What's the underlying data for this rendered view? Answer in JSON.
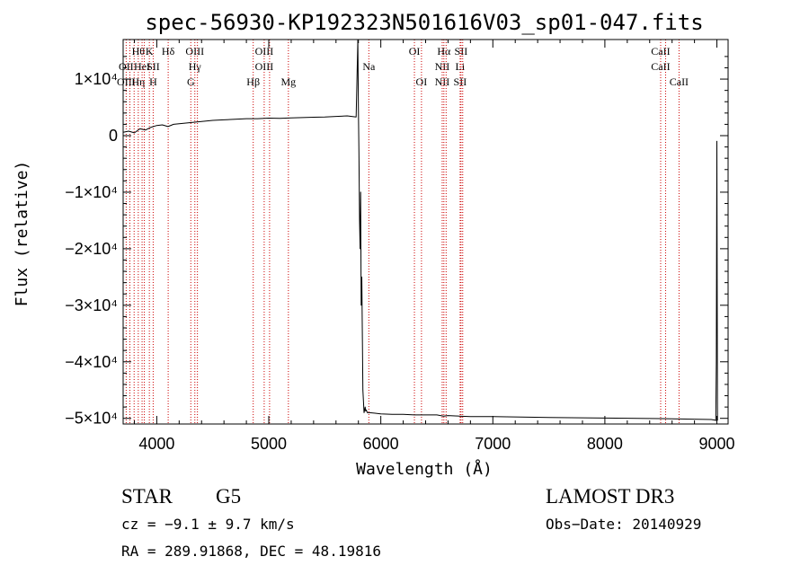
{
  "chart_data": {
    "type": "line",
    "title": "spec-56930-KP192323N501616V03_sp01-047.fits",
    "xlabel": "Wavelength (Å)",
    "ylabel": "Flux (relative)",
    "xlim": [
      3700,
      9100
    ],
    "ylim": [
      -51000,
      17000
    ],
    "x_ticks": [
      {
        "value": 4000,
        "label": "4000"
      },
      {
        "value": 5000,
        "label": "5000"
      },
      {
        "value": 6000,
        "label": "6000"
      },
      {
        "value": 7000,
        "label": "7000"
      },
      {
        "value": 8000,
        "label": "8000"
      },
      {
        "value": 9000,
        "label": "9000"
      }
    ],
    "y_ticks": [
      {
        "value": 10000,
        "label": "1×10⁴"
      },
      {
        "value": 0,
        "label": "0"
      },
      {
        "value": -10000,
        "label": "−1×10⁴"
      },
      {
        "value": -20000,
        "label": "−2×10⁴"
      },
      {
        "value": -30000,
        "label": "−3×10⁴"
      },
      {
        "value": -40000,
        "label": "−4×10⁴"
      },
      {
        "value": -50000,
        "label": "−5×10⁴"
      }
    ],
    "series": [
      {
        "name": "spectrum",
        "x": [
          3700,
          3750,
          3800,
          3850,
          3900,
          3950,
          4000,
          4050,
          4100,
          4150,
          4200,
          4300,
          4400,
          4500,
          4600,
          4700,
          4800,
          4900,
          5000,
          5100,
          5200,
          5300,
          5400,
          5500,
          5600,
          5700,
          5780,
          5795,
          5800,
          5805,
          5810,
          5815,
          5820,
          5825,
          5830,
          5840,
          5850,
          5855,
          5860,
          5865,
          5870,
          5880,
          5900,
          5950,
          6000,
          6100,
          6200,
          6300,
          6400,
          6500,
          6560,
          6600,
          6700,
          6800,
          6900,
          7000,
          7500,
          8000,
          8500,
          8950,
          8980,
          8990,
          8995,
          9000,
          9005
        ],
        "y": [
          600,
          800,
          500,
          1200,
          1000,
          1500,
          1800,
          1900,
          1600,
          2000,
          2100,
          2300,
          2500,
          2700,
          2800,
          2900,
          3000,
          3000,
          3100,
          3050,
          3150,
          3200,
          3250,
          3300,
          3400,
          3500,
          3300,
          17000,
          5000,
          -3000,
          -15000,
          -20000,
          -10000,
          -30000,
          -25000,
          -45000,
          -49000,
          -48500,
          -48000,
          -48700,
          -48500,
          -49000,
          -49000,
          -49100,
          -49200,
          -49300,
          -49300,
          -49400,
          -49400,
          -49400,
          -49600,
          -49500,
          -49600,
          -49700,
          -49700,
          -49700,
          -49850,
          -49950,
          -50050,
          -50200,
          -50300,
          -50400,
          -40000,
          -1000,
          -50400
        ]
      }
    ],
    "spectral_lines": [
      {
        "wl": 3727,
        "top": "",
        "mid": "OII",
        "bot": "OIII"
      },
      {
        "wl": 3760,
        "top": "",
        "mid": "",
        "bot": ""
      },
      {
        "wl": 3798,
        "top": "",
        "mid": "",
        "bot": ""
      },
      {
        "wl": 3835,
        "top": "Hθ",
        "mid": "",
        "bot": "Hη"
      },
      {
        "wl": 3869,
        "top": "",
        "mid": "HeI",
        "bot": ""
      },
      {
        "wl": 3889,
        "top": "",
        "mid": "",
        "bot": ""
      },
      {
        "wl": 3934,
        "top": "K",
        "mid": "",
        "bot": ""
      },
      {
        "wl": 3968,
        "top": "",
        "mid": "SII",
        "bot": "H"
      },
      {
        "wl": 4102,
        "top": "Hδ",
        "mid": "",
        "bot": ""
      },
      {
        "wl": 4304,
        "top": "",
        "mid": "",
        "bot": "G"
      },
      {
        "wl": 4340,
        "top": "OIII",
        "mid": "Hγ",
        "bot": ""
      },
      {
        "wl": 4363,
        "top": "",
        "mid": "",
        "bot": ""
      },
      {
        "wl": 4861,
        "top": "",
        "mid": "",
        "bot": "Hβ"
      },
      {
        "wl": 4959,
        "top": "OIII",
        "mid": "OIII",
        "bot": ""
      },
      {
        "wl": 5007,
        "top": "",
        "mid": "",
        "bot": ""
      },
      {
        "wl": 5175,
        "top": "",
        "mid": "",
        "bot": "Mg"
      },
      {
        "wl": 5893,
        "top": "",
        "mid": "Na",
        "bot": ""
      },
      {
        "wl": 6300,
        "top": "OI",
        "mid": "",
        "bot": ""
      },
      {
        "wl": 6363,
        "top": "",
        "mid": "",
        "bot": "OI"
      },
      {
        "wl": 6548,
        "top": "",
        "mid": "NII",
        "bot": "NII"
      },
      {
        "wl": 6563,
        "top": "Hα",
        "mid": "",
        "bot": ""
      },
      {
        "wl": 6583,
        "top": "",
        "mid": "",
        "bot": ""
      },
      {
        "wl": 6708,
        "top": "",
        "mid": "Li",
        "bot": "SII"
      },
      {
        "wl": 6716,
        "top": "SII",
        "mid": "",
        "bot": ""
      },
      {
        "wl": 6731,
        "top": "",
        "mid": "",
        "bot": ""
      },
      {
        "wl": 8498,
        "top": "CaII",
        "mid": "CaII",
        "bot": ""
      },
      {
        "wl": 8542,
        "top": "",
        "mid": "",
        "bot": ""
      },
      {
        "wl": 8662,
        "top": "",
        "mid": "",
        "bot": "CaII"
      }
    ]
  },
  "info": {
    "class": "STAR",
    "subclass": "G5",
    "survey": "LAMOST DR3",
    "cz": "cz = −9.1 ± 9.7 km/s",
    "obs_date": "Obs−Date: 20140929",
    "radec": "RA = 289.91868, DEC =  48.19816"
  },
  "colors": {
    "line_marker": "#cc0000",
    "spectrum": "#000000",
    "axis": "#000000"
  }
}
